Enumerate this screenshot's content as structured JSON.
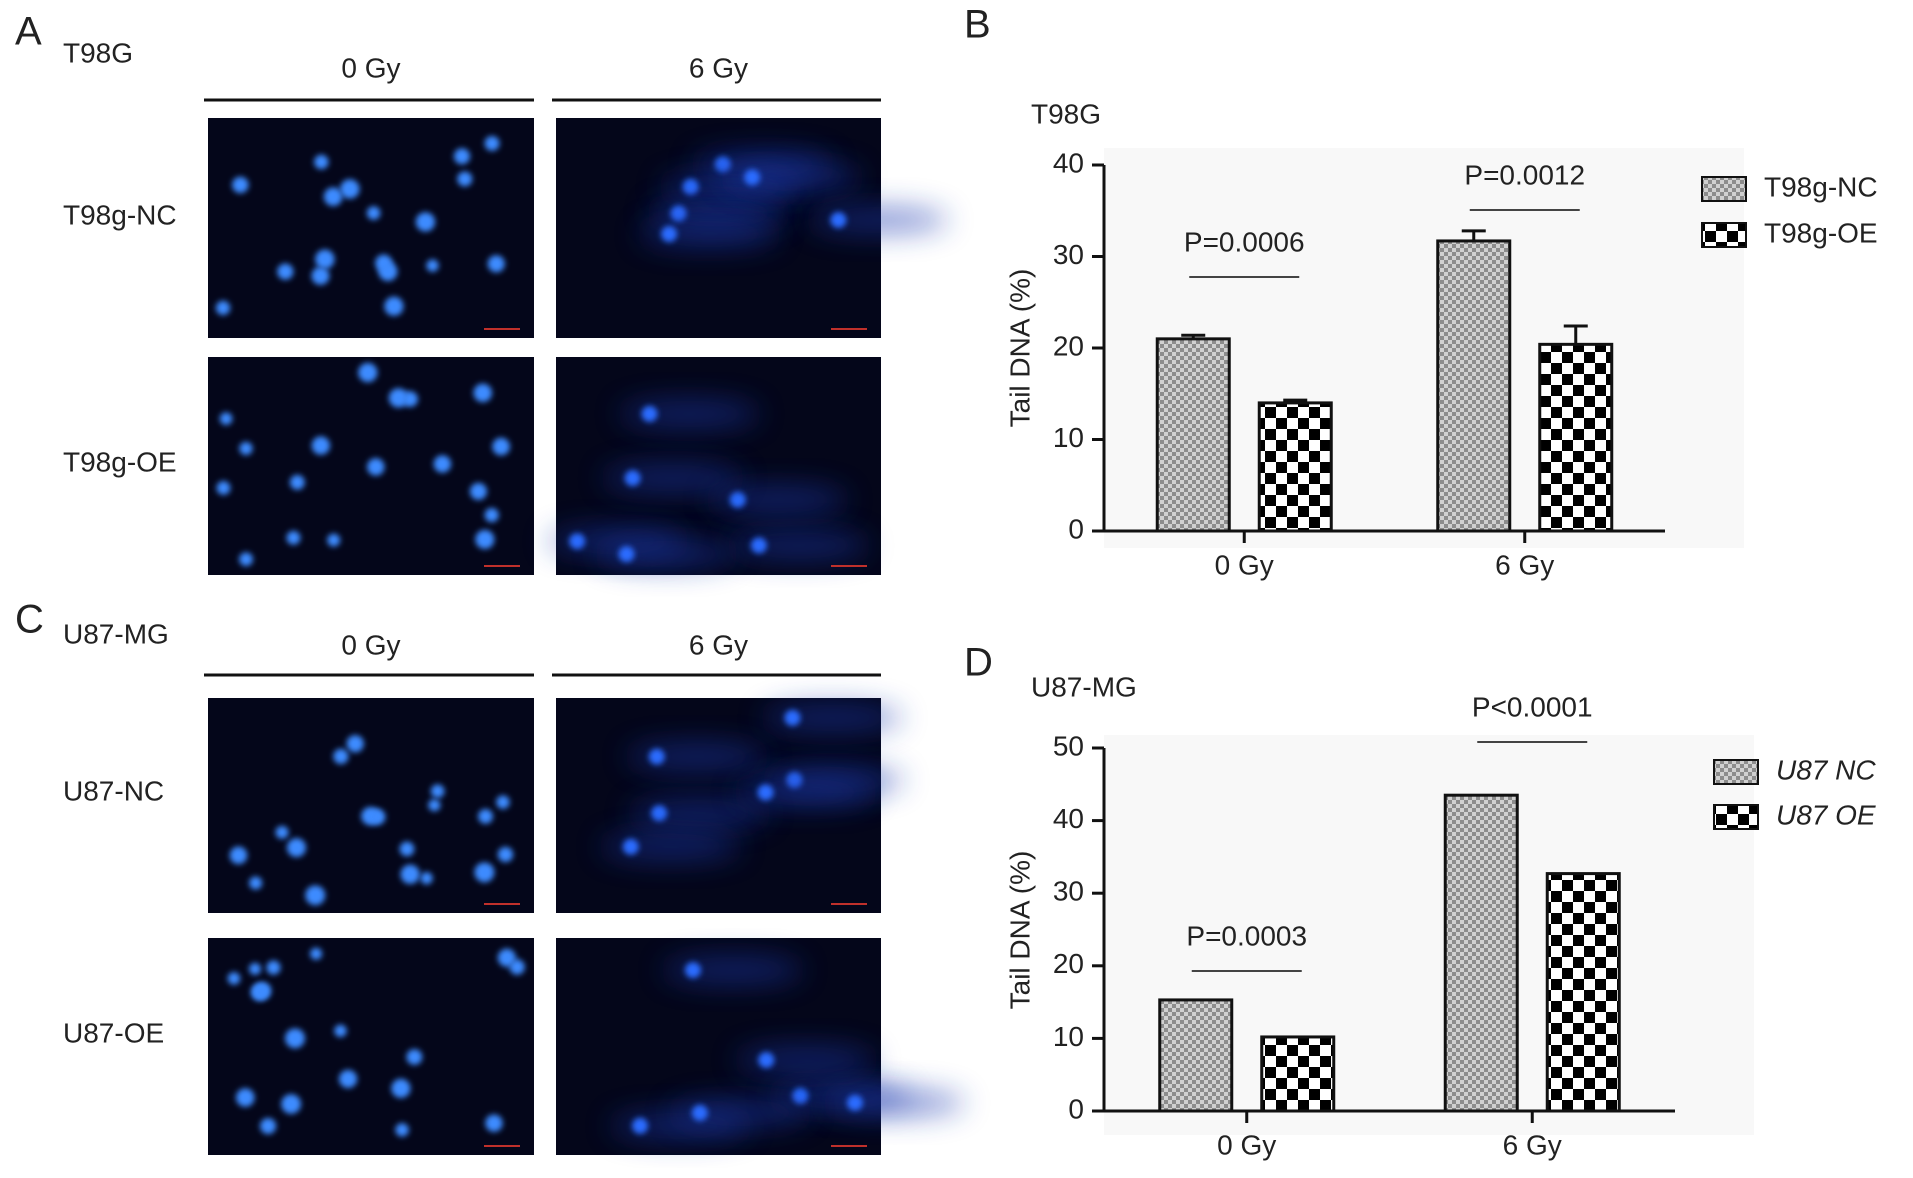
{
  "panels": [
    {
      "label": "A",
      "cell_line": "T98G",
      "columns": [
        "0 Gy",
        "6 Gy"
      ],
      "rows": [
        "T98g-NC",
        "T98g-OE"
      ]
    },
    {
      "label": "C",
      "cell_line": "U87-MG",
      "columns": [
        "0 Gy",
        "6 Gy"
      ],
      "rows": [
        "U87-NC",
        "U87-OE"
      ]
    }
  ],
  "chart_data": [
    {
      "type": "bar",
      "panel_label": "B",
      "title": "T98G",
      "y_label": "Tail DNA (%)",
      "categories": [
        "0 Gy",
        "6 Gy"
      ],
      "series": [
        {
          "name": "T98g-NC",
          "pattern": "fine",
          "color": "#8c8c8c",
          "values": [
            21,
            31.7
          ],
          "errors": [
            0.4,
            1.1
          ]
        },
        {
          "name": "T98g-OE",
          "pattern": "check",
          "color": "#000000",
          "values": [
            14,
            20.4
          ],
          "errors": [
            0.3,
            2.0
          ]
        }
      ],
      "p_values": [
        "P=0.0006",
        "P=0.0012"
      ],
      "ylim": [
        0,
        40
      ],
      "yticks": [
        0,
        10,
        20,
        30,
        40
      ],
      "legend": "upper right",
      "legend_italic": false
    },
    {
      "type": "bar",
      "panel_label": "D",
      "title": "U87-MG",
      "y_label": "Tail DNA (%)",
      "categories": [
        "0 Gy",
        "6 Gy"
      ],
      "series": [
        {
          "name": "U87 NC",
          "pattern": "fine",
          "color": "#8c8c8c",
          "values": [
            15.3,
            43.5
          ]
        },
        {
          "name": "U87 OE",
          "pattern": "check",
          "color": "#000000",
          "values": [
            10.2,
            32.7
          ]
        }
      ],
      "p_values": [
        "P=0.0003",
        "P<0.0001"
      ],
      "ylim": [
        0,
        50
      ],
      "yticks": [
        0,
        10,
        20,
        30,
        40,
        50
      ],
      "legend": "upper right",
      "legend_italic": true
    }
  ]
}
